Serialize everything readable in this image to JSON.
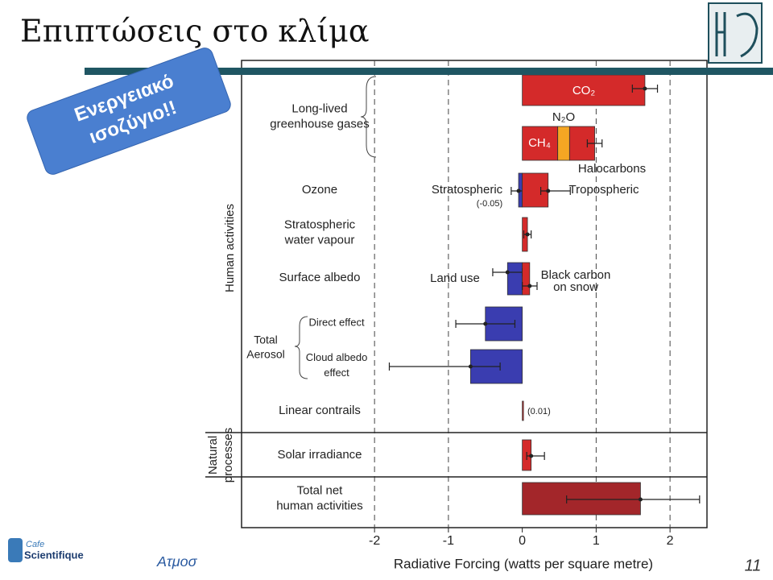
{
  "slide": {
    "title": "Επιπτώσεις στο κλίμα",
    "badge": [
      "Ενεργειακό",
      "ισοζύγιο!!"
    ],
    "footer": "Ατμοσ",
    "page": "11",
    "logo": [
      "Cafe",
      "Scientifique"
    ]
  },
  "chart_data": {
    "type": "hbar",
    "xlabel": "Radiative Forcing  (watts per square metre)",
    "xlim": [
      -3.8,
      2.5
    ],
    "xticks": [
      -2,
      -1,
      0,
      1,
      2
    ],
    "grid": true,
    "groups": [
      "Human activities",
      [
        "Natural",
        "processes"
      ]
    ],
    "aerosol_label": [
      "Total",
      "Aerosol"
    ],
    "row_labels": [
      [
        "Long-lived",
        "greenhouse gases"
      ],
      [
        "Ozone"
      ],
      [
        "Stratospheric",
        "water vapour"
      ],
      [
        "Surface albedo"
      ],
      [
        "Direct effect"
      ],
      [
        "Cloud albedo",
        "effect"
      ],
      [
        "Linear contrails"
      ],
      [
        "Solar irradiance"
      ],
      [
        "Total net",
        "human activities"
      ]
    ],
    "bars": [
      {
        "label": [
          "CO₂"
        ],
        "value": 1.66,
        "low": 1.49,
        "high": 1.83,
        "color": "#d42a2a"
      },
      {
        "label": [
          "CH₄"
        ],
        "value": 0.48,
        "color": "#d42a2a"
      },
      {
        "label": [
          "N₂O"
        ],
        "value": 0.16,
        "color": "#f5a623"
      },
      {
        "label": [
          "Halocarbons"
        ],
        "value": 0.34,
        "low": 0.88,
        "high": 1.08,
        "color": "#d42a2a"
      },
      {
        "label": [
          "Stratospheric"
        ],
        "value": -0.05,
        "value_labels": "(-0.05)",
        "low": -0.15,
        "high": 0.05,
        "color": "#3a3db0"
      },
      {
        "label": [
          "Tropospheric"
        ],
        "value": 0.35,
        "low": 0.25,
        "high": 0.65,
        "color": "#d42a2a"
      },
      {
        "value": 0.07,
        "low": 0.02,
        "high": 0.12,
        "color": "#d42a2a"
      },
      {
        "label": [
          "Land use"
        ],
        "value": -0.2,
        "low": -0.4,
        "high": 0.0,
        "color": "#3a3db0"
      },
      {
        "label": [
          "Black carbon",
          "on snow"
        ],
        "value": 0.1,
        "low": 0.0,
        "high": 0.2,
        "color": "#d42a2a"
      },
      {
        "value": -0.5,
        "low": -0.9,
        "high": -0.1,
        "color": "#3a3db0"
      },
      {
        "value": -0.7,
        "low": -1.8,
        "high": -0.3,
        "color": "#3a3db0"
      },
      {
        "value": 0.01,
        "value_labels": "(0.01)",
        "color": "#d42a2a"
      },
      {
        "value": 0.12,
        "low": 0.06,
        "high": 0.3,
        "color": "#d42a2a"
      },
      {
        "value": 1.6,
        "low": 0.6,
        "high": 2.4,
        "color": "#a3262a"
      }
    ]
  }
}
